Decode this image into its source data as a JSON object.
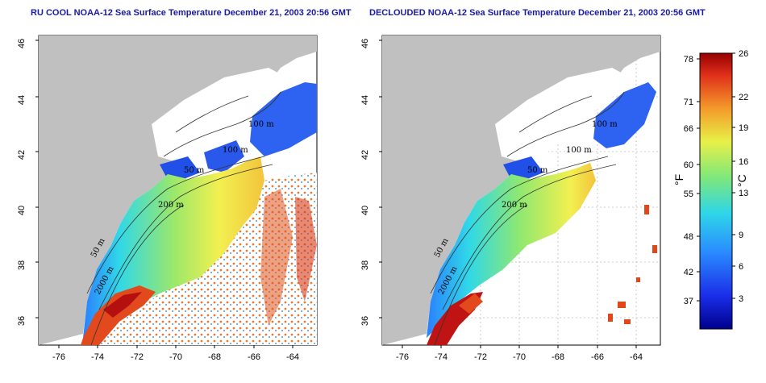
{
  "left_panel": {
    "title": "RU COOL NOAA-12 Sea Surface Temperature December 21, 2003 20:56 GMT",
    "contour_labels": [
      "100 m",
      "100 m",
      "50 m",
      "200 m",
      "50 m",
      "2000 m"
    ]
  },
  "right_panel": {
    "title": "DECLOUDED NOAA-12 Sea Surface Temperature December 21, 2003 20:56 GMT",
    "contour_labels": [
      "100 m",
      "100 m",
      "50 m",
      "200 m",
      "50 m",
      "2000 m"
    ]
  },
  "axes": {
    "lat_ticks": [
      "46",
      "44",
      "42",
      "40",
      "38",
      "36"
    ],
    "lon_ticks": [
      "-76",
      "-74",
      "-72",
      "-70",
      "-68",
      "-66",
      "-64"
    ]
  },
  "colorbar": {
    "fahrenheit_ticks": [
      "78",
      "71",
      "66",
      "60",
      "55",
      "48",
      "42",
      "37"
    ],
    "celsius_ticks": [
      "26",
      "22",
      "19",
      "16",
      "13",
      "9",
      "6",
      "3"
    ],
    "fahrenheit_unit": "°F",
    "celsius_unit": "°C"
  },
  "colors": {
    "title": "#1a1aa8",
    "land": "#c0c0c0",
    "cloud": "#ffffff"
  }
}
